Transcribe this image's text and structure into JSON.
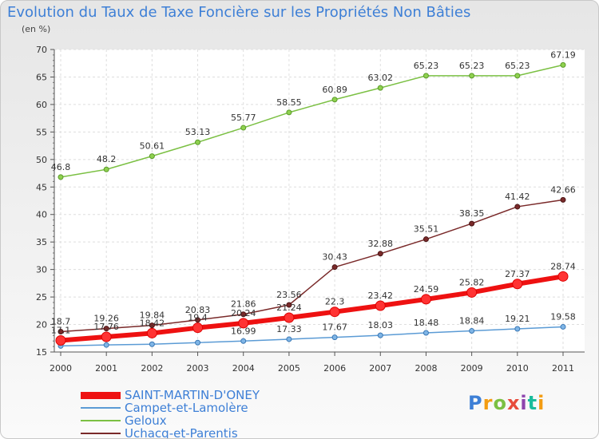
{
  "title": "Evolution du Taux de Taxe Foncière sur les Propriétés Non Bâties",
  "unit_label": "(en %)",
  "logo": {
    "text": "Proxiti",
    "colors": [
      "#3d7fd6",
      "#f39c12",
      "#7bc043",
      "#e74c3c",
      "#8e44ad",
      "#1abc9c",
      "#f39c12"
    ]
  },
  "chart_data": {
    "type": "line",
    "title": "Evolution du Taux de Taxe Foncière sur les Propriétés Non Bâties",
    "ylabel": "(en %)",
    "x": [
      "2000",
      "2001",
      "2002",
      "2003",
      "2004",
      "2005",
      "2006",
      "2007",
      "2008",
      "2009",
      "2010",
      "2011"
    ],
    "ylim": [
      15,
      70
    ],
    "yticks": [
      15,
      20,
      25,
      30,
      35,
      40,
      45,
      50,
      55,
      60,
      65,
      70
    ],
    "grid": true,
    "legend_position": "bottom-left",
    "series": [
      {
        "name": "SAINT-MARTIN-D'ONEY",
        "color": "#ee1111",
        "values": [
          17.1,
          17.76,
          18.42,
          19.4,
          20.24,
          21.24,
          22.3,
          23.42,
          24.59,
          25.82,
          27.37,
          28.74
        ],
        "labels": [
          "17.1",
          "17.76",
          "18.42",
          "19.4",
          "20.24",
          "21.24",
          "22.3",
          "23.42",
          "24.59",
          "25.82",
          "27.37",
          "28.74"
        ]
      },
      {
        "name": "Campet-et-Lamolère",
        "color": "#5b9bd5",
        "values": [
          16.1,
          16.28,
          16.42,
          16.71,
          16.99,
          17.33,
          17.67,
          18.03,
          18.48,
          18.84,
          19.21,
          19.58
        ],
        "labels": [
          "",
          "",
          "",
          "",
          "16.99",
          "17.33",
          "17.67",
          "18.03",
          "18.48",
          "18.84",
          "19.21",
          "19.58"
        ]
      },
      {
        "name": "Geloux",
        "color": "#7bc043",
        "values": [
          46.8,
          48.2,
          50.61,
          53.13,
          55.77,
          58.55,
          60.89,
          63.02,
          65.23,
          65.23,
          65.23,
          67.19
        ],
        "labels": [
          "46.8",
          "48.2",
          "50.61",
          "53.13",
          "55.77",
          "58.55",
          "60.89",
          "63.02",
          "65.23",
          "65.23",
          "65.23",
          "67.19"
        ]
      },
      {
        "name": "Uchacq-et-Parentis",
        "color": "#7a2a2a",
        "values": [
          18.7,
          19.26,
          19.84,
          20.83,
          21.86,
          23.56,
          30.43,
          32.88,
          35.51,
          38.35,
          41.42,
          42.66
        ],
        "labels": [
          "18.7",
          "19.26",
          "19.84",
          "20.83",
          "21.86",
          "23.56",
          "30.43",
          "32.88",
          "35.51",
          "38.35",
          "41.42",
          "42.66"
        ]
      }
    ]
  }
}
